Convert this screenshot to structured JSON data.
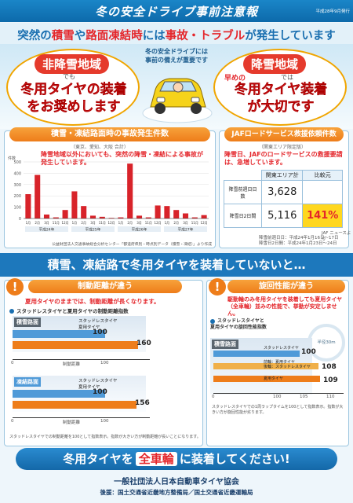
{
  "header": {
    "title": "冬の安全ドライブ事前注意報",
    "date": "平成28年9月発行"
  },
  "headline": {
    "pre": "突然の",
    "k1": "積雪",
    "mid1": "や",
    "k2": "路面凍結時",
    "mid2": "には",
    "k3": "事故・トラブル",
    "post": "が発生しています"
  },
  "hero": {
    "center_line1": "冬の安全ドライブには",
    "center_line2": "事前の備えが重要です",
    "left_label": "非降雪地域",
    "left_sub": "でも",
    "left_msg1": "冬用タイヤの装着",
    "left_msg2": "をお奨めします",
    "right_label": "降雪地域",
    "right_sub1": "早めの",
    "right_sub2": "では",
    "right_msg1": "冬用タイヤ装着",
    "right_msg2": "が大切です"
  },
  "accident": {
    "title": "積雪・凍結路面時の事故発生件数",
    "subtitle": "（東京、愛知、大阪 合計）",
    "note": "降雪地域以外においても、突然の降雪・凍結による事故が発生しています。",
    "unit": "件数",
    "source": "公益財団法人交通事故総合分析センター「都道府県別・時点別データ（積雪・凍結）」より作成",
    "year_labels": [
      "平成24年",
      "平成25年",
      "平成26年",
      "平成27年"
    ]
  },
  "chart_data": {
    "type": "bar",
    "ylabel": "件数",
    "ylim": [
      0,
      500
    ],
    "yticks": [
      0,
      100,
      200,
      300,
      400,
      500
    ],
    "categories": [
      "1月",
      "2月",
      "3月",
      "11月",
      "12月",
      "1月",
      "2月",
      "3月",
      "11月",
      "12月",
      "1月",
      "2月",
      "3月",
      "11月",
      "12月",
      "1月",
      "2月",
      "3月",
      "11月",
      "12月"
    ],
    "values": [
      215,
      385,
      35,
      10,
      75,
      240,
      110,
      25,
      15,
      5,
      10,
      485,
      25,
      10,
      115,
      110,
      75,
      45,
      10,
      30
    ]
  },
  "jaf": {
    "title": "JAFロードサービス救援依頼件数",
    "subtitle": "（関東エリア限定版）",
    "note": "降雪日、JAFのロードサービスの救援要請は、急増しています。",
    "col1": "関東エリア計",
    "col2": "比較元",
    "row1_label": "降雪前週日日数",
    "row1_value": "3,628",
    "row2_label": "降雪日2日間",
    "row2_value": "5,116",
    "row2_ratio": "141%",
    "source": "JAF ニュースより",
    "footnote1": "降雪前週日日：平成24年1月16日〜17日",
    "footnote2": "降雪日2日間：平成24年1月23日〜24日"
  },
  "banner": {
    "text": "積雪、凍結路で冬用タイヤを装着していないと…"
  },
  "braking": {
    "title": "制動距離が違う",
    "note": "夏用タイヤのままでは、制動距離が長くなります。",
    "sub": "スタッドレスタイヤと夏用タイヤの制動距離指数",
    "surface1": "積雪路面",
    "surface2": "凍結路面",
    "legend_studless": "スタッドレスタイヤ",
    "legend_summer": "夏用タイヤ",
    "value_a1": "100",
    "value_a2": "160",
    "value_b1": "100",
    "value_b2": "156",
    "axis_0": "0",
    "axis_100": "100",
    "axis_label": "制動距離",
    "footnote": "スタッドレスタイヤでの制動距離を100として指数表示。指数が大きい方が制動距離が長いことになります。"
  },
  "cornering": {
    "title": "旋回性能が違う",
    "note": "駆動輪のみ冬用タイヤを装着しても夏用タイヤ（全車輪）並みの性能で、挙動が安定しません。",
    "sub1": "スタッドレスタイヤと",
    "sub2": "夏用タイヤの旋回性能指数",
    "surface": "積雪路面",
    "legend1": "スタッドレスタイヤ",
    "legend2": "前輪：夏用タイヤ",
    "legend2b": "後輪：スタッドレスタイヤ",
    "legend3": "夏用タイヤ",
    "radius": "半径30m",
    "value1": "100",
    "value2": "108",
    "value3": "109",
    "axis_0": "0",
    "axis_100": "100",
    "axis_105": "105",
    "axis_110": "110",
    "footnote": "スタッドレスタイヤでの1周ラップタイムを100として指数表示。指数が大きい方が旋回性能が劣ります。"
  },
  "footer": {
    "pre": "冬用タイヤを",
    "emph": "全車輪",
    "post": "に装着してください!",
    "org": "一般社団法人日本自動車タイヤ協会",
    "support": "後援：国土交通省近畿地方整備局／国土交通省近畿運輸局"
  }
}
